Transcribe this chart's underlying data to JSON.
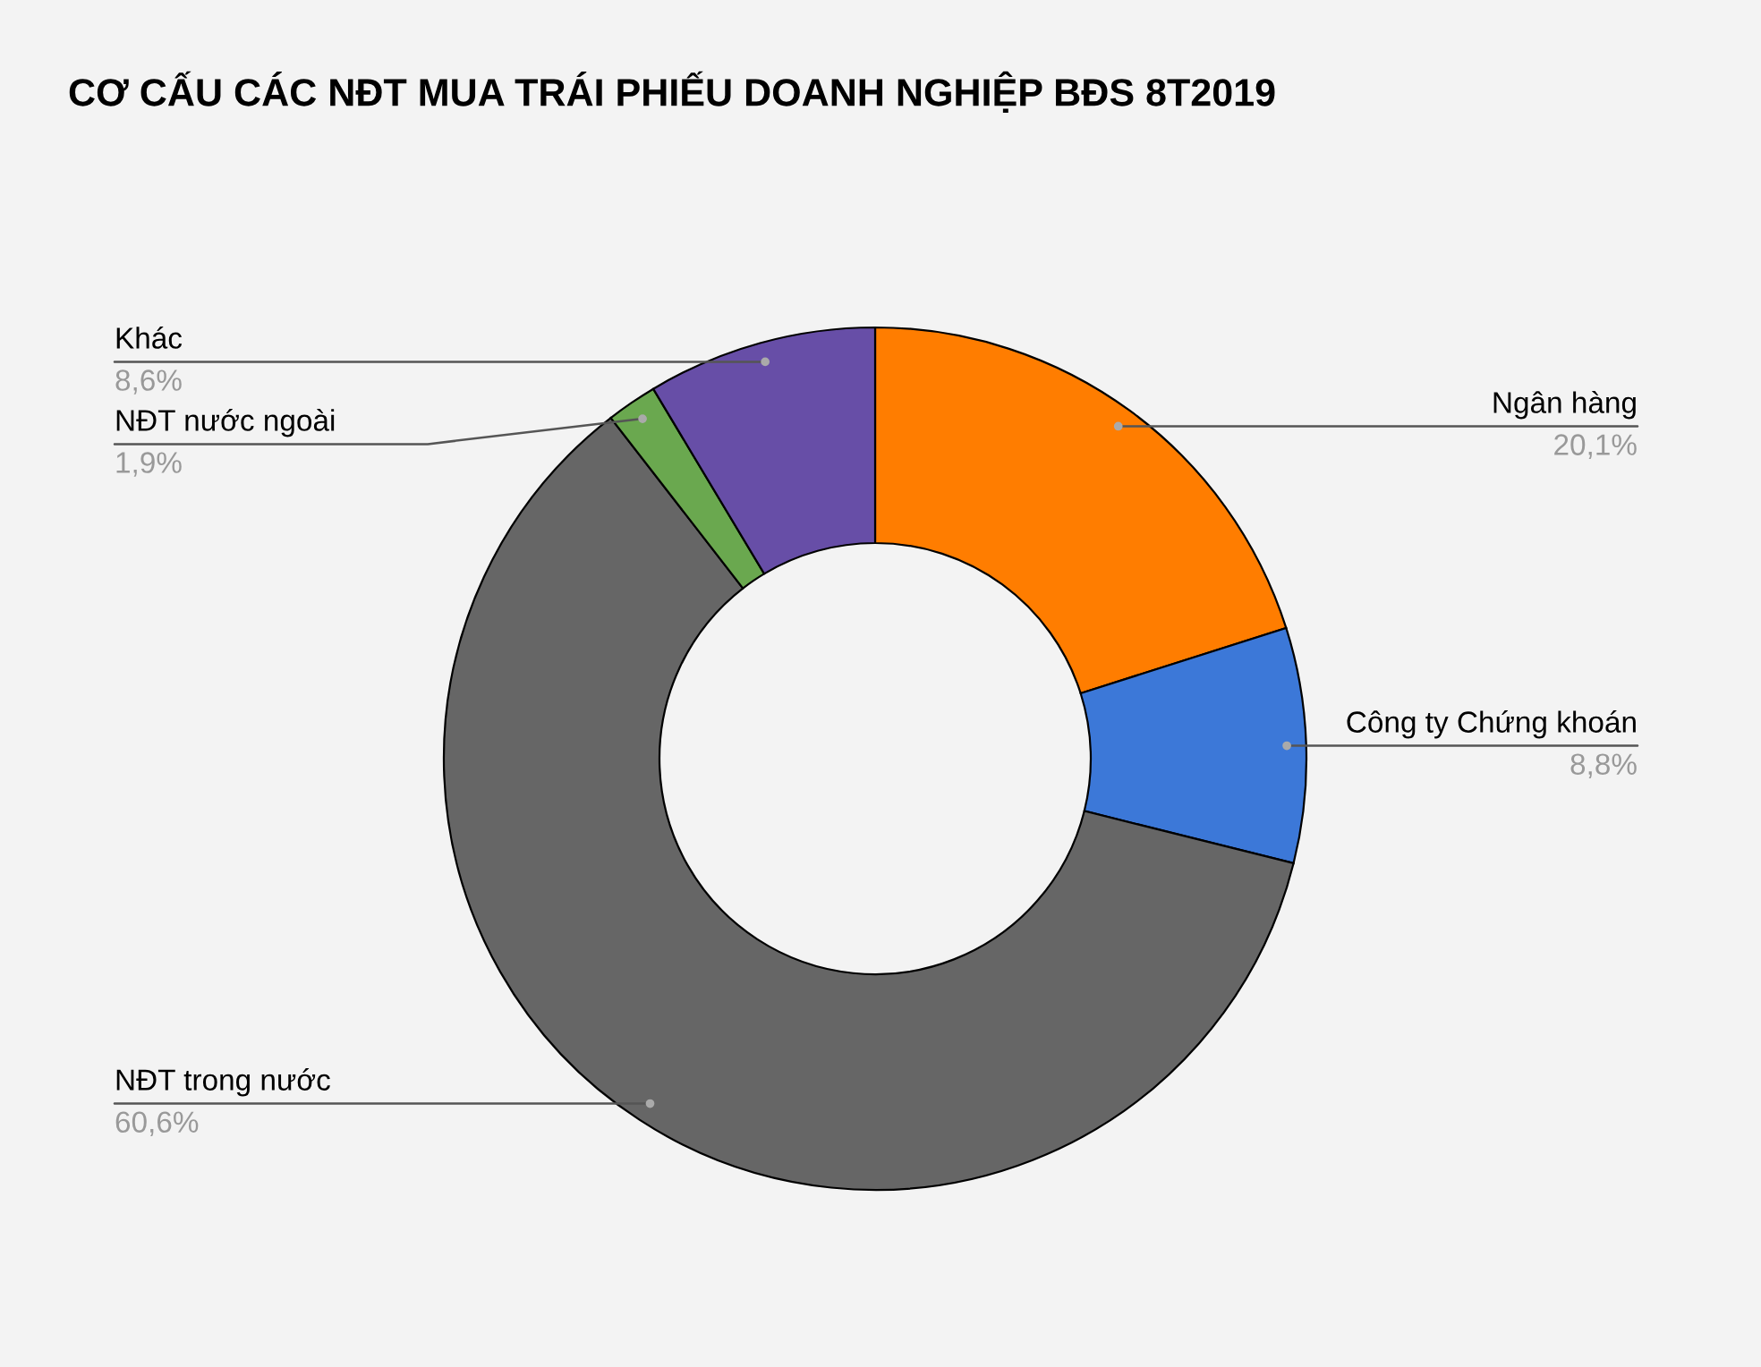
{
  "chart_data": {
    "type": "donut",
    "title": "CƠ CẤU CÁC NĐT MUA TRÁI PHIẾU DOANH NGHIỆP BĐS 8T2019",
    "categories": [
      "Ngân hàng",
      "Công ty Chứng khoán",
      "NĐT trong nước",
      "NĐT nước ngoài",
      "Khác"
    ],
    "values": [
      20.1,
      8.8,
      60.6,
      1.9,
      8.6
    ],
    "colors": [
      "#ff7d00",
      "#3c78d8",
      "#666666",
      "#6aa84f",
      "#674ea7"
    ],
    "value_labels": [
      "20,1%",
      "8,8%",
      "60,6%",
      "1,9%",
      "8,6%"
    ]
  }
}
